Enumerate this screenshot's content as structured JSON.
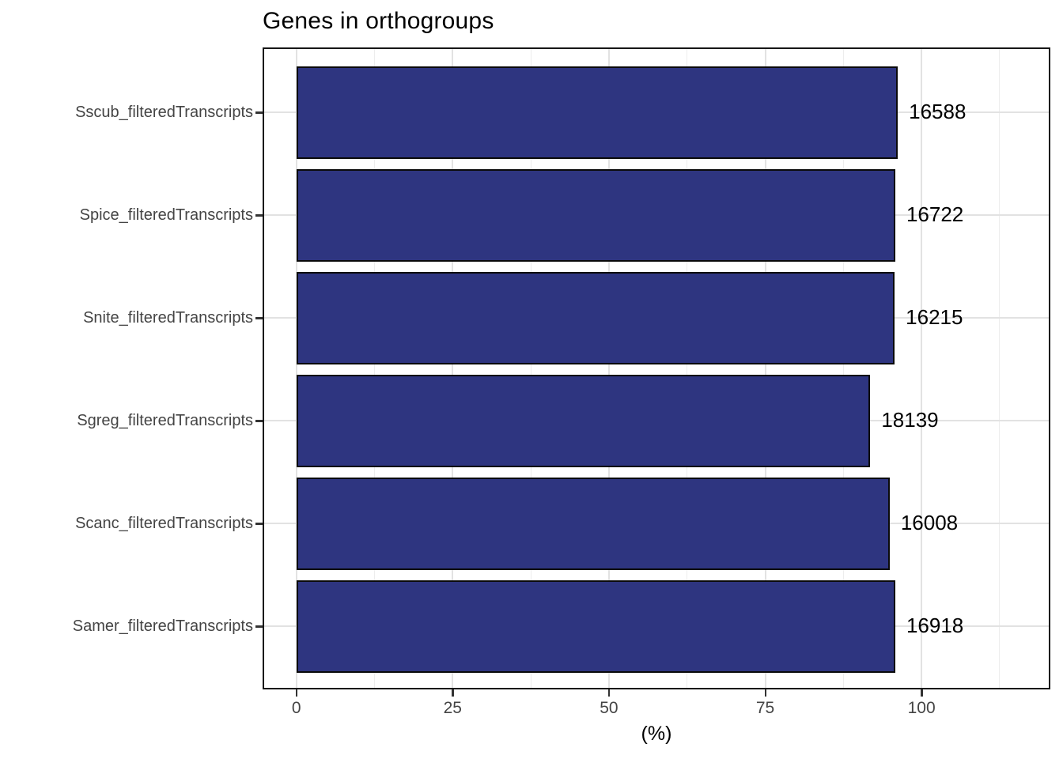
{
  "chart_data": {
    "type": "bar",
    "orientation": "horizontal",
    "title": "Genes in orthogroups",
    "xlabel": "(%)",
    "ylabel": "",
    "categories": [
      "Sscub_filteredTranscripts",
      "Spice_filteredTranscripts",
      "Snite_filteredTranscripts",
      "Sgreg_filteredTranscripts",
      "Scanc_filteredTranscripts",
      "Samer_filteredTranscripts"
    ],
    "values_pct": [
      96.2,
      95.8,
      95.7,
      91.8,
      94.9,
      95.8
    ],
    "bar_labels": [
      "16588",
      "16722",
      "16215",
      "18139",
      "16008",
      "16918"
    ],
    "x_ticks": [
      0,
      25,
      50,
      75,
      100
    ],
    "x_minor_ticks": [
      12.5,
      37.5,
      62.5,
      87.5,
      112.5
    ],
    "xlim": [
      -5.4,
      120.6
    ],
    "legend": "none",
    "grid": "vertical major+minor, horizontal major at category centers",
    "bar_color": "#2e3580",
    "bar_border_color": "#0a0a0a",
    "panel_border_color": "#161616",
    "gridline_color": "#e2e2e2",
    "axis_text_color": "#444444",
    "label_text_color": "#000000"
  }
}
